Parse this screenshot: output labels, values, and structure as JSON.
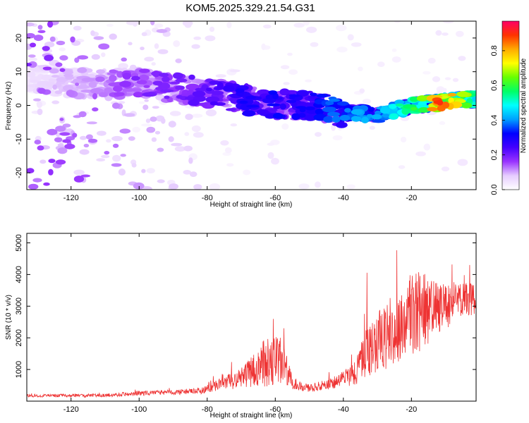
{
  "title": "KOM5.2025.329.21.54.G31",
  "chart_data": [
    {
      "type": "heatmap",
      "name": "spectrogram",
      "xlabel": "Height of straight line (km)",
      "ylabel": "Frequency (Hz)",
      "xlim": [
        -133,
        -1
      ],
      "ylim": [
        -25,
        25
      ],
      "xticks": [
        -120,
        -100,
        -80,
        -60,
        -40,
        -20
      ],
      "yticks": [
        -20,
        -10,
        0,
        10,
        20
      ],
      "colorbar": {
        "label": "Normalized spectral amplitude",
        "range": [
          0,
          0.97
        ],
        "ticks": [
          0.0,
          0.2,
          0.4,
          0.6,
          0.8
        ],
        "colors": [
          "#ffffff",
          "#e6ccff",
          "#9933ff",
          "#4400ff",
          "#0000ff",
          "#00a0ff",
          "#00ffff",
          "#00ff66",
          "#66ff00",
          "#ffff00",
          "#ffaa00",
          "#ff3300",
          "#ff0066"
        ]
      },
      "ridge": [
        {
          "x": -133,
          "f": 8,
          "a": 0.05
        },
        {
          "x": -110,
          "f": 6,
          "a": 0.12
        },
        {
          "x": -100,
          "f": 7,
          "a": 0.18
        },
        {
          "x": -90,
          "f": 5,
          "a": 0.18
        },
        {
          "x": -80,
          "f": 4,
          "a": 0.22
        },
        {
          "x": -70,
          "f": 2,
          "a": 0.28
        },
        {
          "x": -60,
          "f": 0,
          "a": 0.3
        },
        {
          "x": -50,
          "f": 0,
          "a": 0.28
        },
        {
          "x": -40,
          "f": -2,
          "a": 0.38
        },
        {
          "x": -30,
          "f": -3,
          "a": 0.4
        },
        {
          "x": -20,
          "f": 0,
          "a": 0.55
        },
        {
          "x": -12,
          "f": 1,
          "a": 0.85
        },
        {
          "x": -1,
          "f": 2,
          "a": 0.55
        }
      ]
    },
    {
      "type": "line",
      "name": "snr",
      "xlabel": "Height of straight line (km)",
      "ylabel": "SNR (10 * v/v)",
      "xlim": [
        -133,
        -1
      ],
      "ylim": [
        0,
        5300
      ],
      "xticks": [
        -120,
        -100,
        -80,
        -60,
        -40,
        -20
      ],
      "yticks": [
        1000,
        2000,
        3000,
        4000,
        5000
      ],
      "color": "#ee3333",
      "envelope": [
        {
          "x": -133,
          "base": 150,
          "amp": 80
        },
        {
          "x": -110,
          "base": 160,
          "amp": 80
        },
        {
          "x": -100,
          "base": 220,
          "amp": 120
        },
        {
          "x": -90,
          "base": 250,
          "amp": 120
        },
        {
          "x": -82,
          "base": 280,
          "amp": 150
        },
        {
          "x": -78,
          "base": 400,
          "amp": 250
        },
        {
          "x": -70,
          "base": 600,
          "amp": 500
        },
        {
          "x": -65,
          "base": 800,
          "amp": 900
        },
        {
          "x": -62,
          "base": 1000,
          "amp": 1400
        },
        {
          "x": -58,
          "base": 900,
          "amp": 1200
        },
        {
          "x": -55,
          "base": 500,
          "amp": 300
        },
        {
          "x": -50,
          "base": 350,
          "amp": 200
        },
        {
          "x": -45,
          "base": 450,
          "amp": 250
        },
        {
          "x": -40,
          "base": 600,
          "amp": 400
        },
        {
          "x": -36,
          "base": 800,
          "amp": 700
        },
        {
          "x": -33,
          "base": 1200,
          "amp": 1300
        },
        {
          "x": -28,
          "base": 1600,
          "amp": 1600
        },
        {
          "x": -24,
          "base": 1800,
          "amp": 1500
        },
        {
          "x": -20,
          "base": 2200,
          "amp": 2200
        },
        {
          "x": -16,
          "base": 2400,
          "amp": 1800
        },
        {
          "x": -12,
          "base": 2600,
          "amp": 1200
        },
        {
          "x": -8,
          "base": 2800,
          "amp": 1000
        },
        {
          "x": -4,
          "base": 3000,
          "amp": 900
        },
        {
          "x": -1,
          "base": 3000,
          "amp": 700
        }
      ]
    }
  ]
}
